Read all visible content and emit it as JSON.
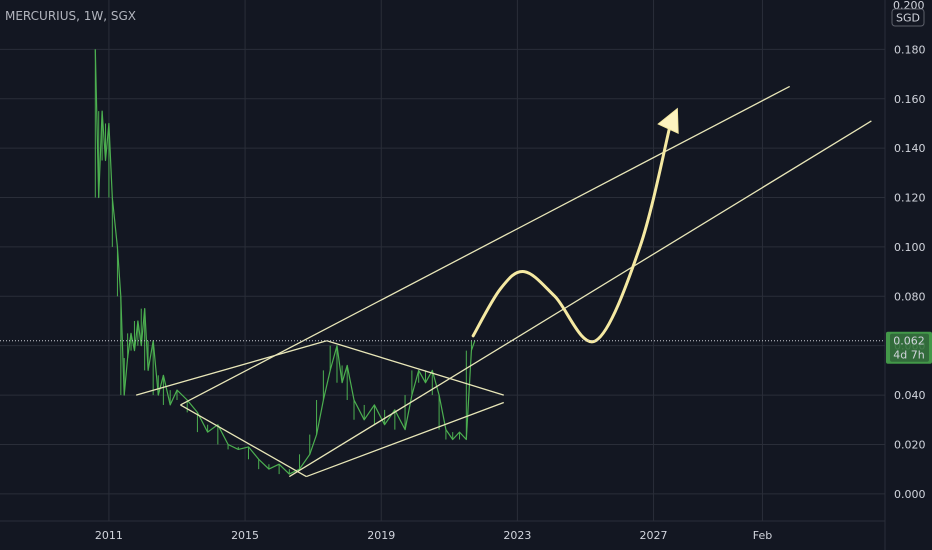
{
  "header": {
    "symbol": "MERCURIUS",
    "interval": "1W",
    "exchange": "SGX",
    "title": "MERCURIUS, 1W, SGX",
    "currency": "SGD",
    "partial_top_label": "0.200"
  },
  "price_label": {
    "value": "0.062",
    "countdown": "4d 7h",
    "color": "#4caf50"
  },
  "colors": {
    "background": "#131722",
    "grid": "#2a2e39",
    "axis_text": "#d1d4dc",
    "price_series": "#4caf50",
    "drawing_lines": "#e8e6b8",
    "arrow_fill": "#fdf3c0",
    "arrow_stroke": "#f5e9a2"
  },
  "chart_data": {
    "type": "line",
    "title": "MERCURIUS, 1W, SGX",
    "ylabel": "SGD",
    "ylim": [
      -0.011,
      0.2
    ],
    "xlim": [
      2007.8,
      2033.8
    ],
    "y_ticks": [
      0.0,
      0.02,
      0.04,
      0.06,
      0.08,
      0.1,
      0.12,
      0.14,
      0.16,
      0.18
    ],
    "y_tick_labels": [
      "0.000",
      "0.020",
      "0.040",
      "0.060",
      "0.080",
      "0.100",
      "0.120",
      "0.140",
      "0.160",
      "0.180"
    ],
    "x_ticks": [
      {
        "value": 2011,
        "label": "2011"
      },
      {
        "value": 2015,
        "label": "2015"
      },
      {
        "value": 2019,
        "label": "2019"
      },
      {
        "value": 2023,
        "label": "2023"
      },
      {
        "value": 2027,
        "label": "2027"
      },
      {
        "value": 2030.2,
        "label": "Feb"
      }
    ],
    "current_price": 0.062,
    "series": [
      {
        "name": "MERCURIUS",
        "points": [
          [
            2010.6,
            0.18
          ],
          [
            2010.7,
            0.12
          ],
          [
            2010.8,
            0.155
          ],
          [
            2010.9,
            0.135
          ],
          [
            2011.0,
            0.15
          ],
          [
            2011.1,
            0.12
          ],
          [
            2011.25,
            0.1
          ],
          [
            2011.35,
            0.08
          ],
          [
            2011.45,
            0.04
          ],
          [
            2011.55,
            0.055
          ],
          [
            2011.65,
            0.065
          ],
          [
            2011.75,
            0.058
          ],
          [
            2011.85,
            0.07
          ],
          [
            2011.95,
            0.06
          ],
          [
            2012.05,
            0.075
          ],
          [
            2012.15,
            0.05
          ],
          [
            2012.3,
            0.062
          ],
          [
            2012.45,
            0.04
          ],
          [
            2012.6,
            0.048
          ],
          [
            2012.8,
            0.036
          ],
          [
            2013.0,
            0.042
          ],
          [
            2013.3,
            0.038
          ],
          [
            2013.6,
            0.033
          ],
          [
            2013.9,
            0.025
          ],
          [
            2014.2,
            0.028
          ],
          [
            2014.5,
            0.02
          ],
          [
            2014.8,
            0.018
          ],
          [
            2015.1,
            0.019
          ],
          [
            2015.4,
            0.014
          ],
          [
            2015.7,
            0.01
          ],
          [
            2016.0,
            0.012
          ],
          [
            2016.3,
            0.008
          ],
          [
            2016.6,
            0.01
          ],
          [
            2016.9,
            0.016
          ],
          [
            2017.1,
            0.024
          ],
          [
            2017.3,
            0.038
          ],
          [
            2017.5,
            0.05
          ],
          [
            2017.7,
            0.06
          ],
          [
            2017.85,
            0.045
          ],
          [
            2018.0,
            0.052
          ],
          [
            2018.2,
            0.038
          ],
          [
            2018.5,
            0.03
          ],
          [
            2018.8,
            0.036
          ],
          [
            2019.1,
            0.028
          ],
          [
            2019.4,
            0.034
          ],
          [
            2019.7,
            0.026
          ],
          [
            2019.9,
            0.04
          ],
          [
            2020.1,
            0.05
          ],
          [
            2020.3,
            0.045
          ],
          [
            2020.5,
            0.05
          ],
          [
            2020.7,
            0.04
          ],
          [
            2020.9,
            0.026
          ],
          [
            2021.1,
            0.022
          ],
          [
            2021.3,
            0.025
          ],
          [
            2021.5,
            0.022
          ],
          [
            2021.65,
            0.058
          ],
          [
            2021.75,
            0.062
          ]
        ]
      }
    ],
    "drawings": {
      "trendlines": [
        {
          "from": [
            2013.1,
            0.036
          ],
          "to": [
            2016.8,
            0.007
          ]
        },
        {
          "from": [
            2011.8,
            0.04
          ],
          "to": [
            2017.4,
            0.062
          ]
        },
        {
          "from": [
            2017.4,
            0.062
          ],
          "to": [
            2022.6,
            0.04
          ]
        },
        {
          "from": [
            2016.8,
            0.007
          ],
          "to": [
            2022.6,
            0.037
          ]
        },
        {
          "from": [
            2013.1,
            0.036
          ],
          "to": [
            2031.0,
            0.165
          ]
        },
        {
          "from": [
            2016.3,
            0.007
          ],
          "to": [
            2033.4,
            0.151
          ]
        }
      ],
      "projection_path": [
        [
          2021.7,
          0.064
        ],
        [
          2022.5,
          0.083
        ],
        [
          2023.2,
          0.09
        ],
        [
          2024.1,
          0.08
        ],
        [
          2025.3,
          0.062
        ],
        [
          2026.6,
          0.1
        ],
        [
          2027.5,
          0.15
        ]
      ],
      "arrow_tip": [
        2027.7,
        0.156
      ]
    }
  }
}
